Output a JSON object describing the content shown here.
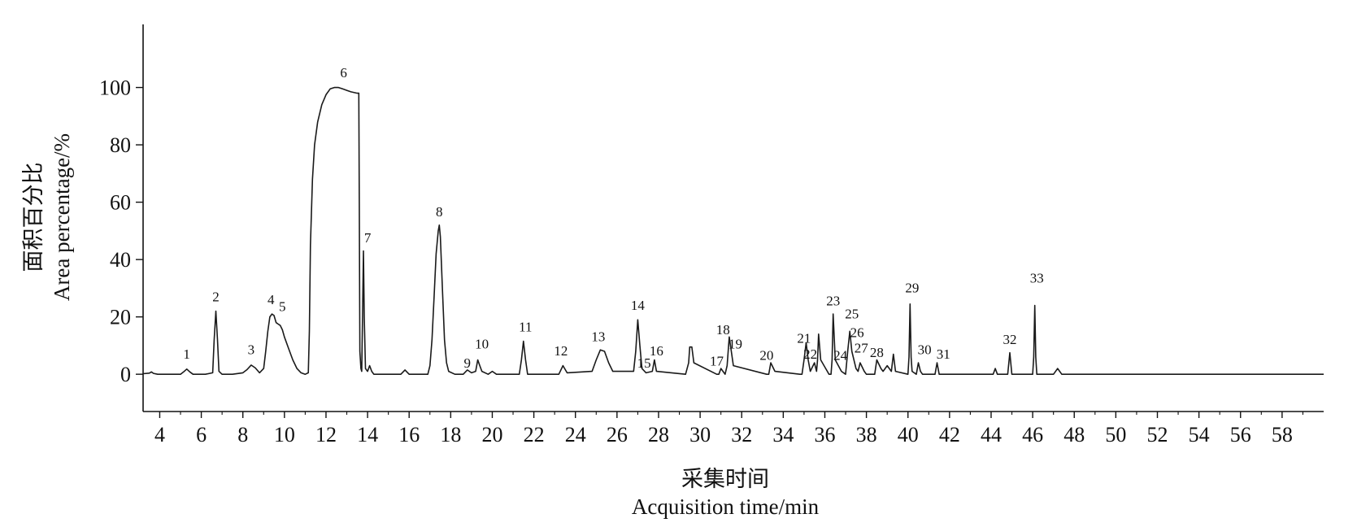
{
  "chart_data": {
    "type": "line",
    "title": "",
    "xlabel_cn": "采集时间",
    "xlabel_en": "Acquisition time/min",
    "ylabel_cn": "面积百分比",
    "ylabel_en": "Area percentage/%",
    "xlim": [
      3.2,
      60.0
    ],
    "ylim": [
      -13,
      122
    ],
    "x_ticks": [
      4,
      6,
      8,
      10,
      12,
      14,
      16,
      18,
      20,
      22,
      24,
      26,
      28,
      30,
      32,
      34,
      36,
      38,
      40,
      42,
      44,
      46,
      48,
      50,
      52,
      54,
      56,
      58
    ],
    "x_tick_labels": [
      "4",
      "6",
      "8",
      "10",
      "12",
      "14",
      "16",
      "18",
      "20",
      "22",
      "24",
      "26",
      "28",
      "30",
      "32",
      "34",
      "36",
      "38",
      "40",
      "42",
      "44",
      "46",
      "48",
      "50",
      "52",
      "54",
      "56",
      "58"
    ],
    "y_ticks": [
      0,
      20,
      40,
      60,
      80,
      100
    ],
    "y_tick_labels": [
      "0",
      "20",
      "40",
      "60",
      "80",
      "100"
    ],
    "series": [
      {
        "x": [
          3.2,
          3.5,
          3.6,
          3.7,
          3.9,
          4.5,
          5.0,
          5.15,
          5.3,
          5.45,
          5.6,
          6.2,
          6.55,
          6.62,
          6.7,
          6.78,
          6.85,
          7.0,
          7.5,
          8.0,
          8.2,
          8.4,
          8.6,
          8.8,
          9.0,
          9.1,
          9.2,
          9.3,
          9.4,
          9.5,
          9.6,
          9.7,
          9.8,
          9.9,
          10.0,
          10.2,
          10.4,
          10.6,
          10.8,
          11.0,
          11.15,
          11.2,
          11.25,
          11.35,
          11.45,
          11.6,
          11.8,
          12.0,
          12.2,
          12.4,
          12.6,
          12.8,
          13.0,
          13.2,
          13.5,
          13.58,
          13.6,
          13.63,
          13.68,
          13.72,
          13.76,
          13.8,
          13.84,
          13.9,
          14.0,
          14.1,
          14.2,
          14.3,
          15.6,
          15.8,
          16.0,
          16.9,
          17.0,
          17.1,
          17.2,
          17.3,
          17.4,
          17.45,
          17.5,
          17.6,
          17.7,
          17.8,
          17.9,
          18.2,
          18.6,
          18.8,
          19.0,
          19.2,
          19.3,
          19.4,
          19.5,
          19.8,
          20.0,
          20.2,
          21.3,
          21.4,
          21.5,
          21.6,
          21.7,
          23.2,
          23.4,
          23.6,
          24.8,
          25.0,
          25.2,
          25.4,
          25.6,
          25.8,
          26.8,
          26.9,
          27.0,
          27.1,
          27.2,
          27.4,
          27.7,
          27.8,
          27.9,
          29.3,
          29.45,
          29.5,
          29.6,
          29.7,
          30.8,
          30.9,
          31.0,
          31.2,
          31.3,
          31.4,
          31.6,
          33.2,
          33.3,
          33.4,
          33.6,
          34.8,
          34.9,
          35.0,
          35.1,
          35.2,
          35.3,
          35.5,
          35.6,
          35.65,
          35.7,
          35.8,
          36.2,
          36.3,
          36.35,
          36.4,
          36.5,
          36.8,
          37.0,
          37.1,
          37.2,
          37.3,
          37.5,
          37.6,
          37.7,
          37.9,
          38.0,
          38.4,
          38.5,
          38.7,
          38.8,
          39.0,
          39.2,
          39.3,
          39.4,
          40.0,
          40.05,
          40.1,
          40.15,
          40.2,
          40.4,
          40.5,
          40.6,
          40.7,
          41.3,
          41.4,
          41.5,
          44.1,
          44.2,
          44.3,
          44.8,
          44.9,
          45.0,
          46.0,
          46.05,
          46.1,
          46.15,
          46.2,
          47.0,
          47.2,
          47.4,
          48.0,
          60.0
        ],
        "y": [
          0.2,
          0.4,
          0.8,
          0.3,
          0,
          0,
          0,
          0.8,
          1.8,
          0.8,
          0,
          0,
          0.5,
          12,
          22,
          12,
          1,
          0,
          0,
          0.5,
          1.6,
          3.2,
          2.2,
          0.5,
          2,
          8,
          15,
          20,
          21,
          20.5,
          18,
          17.5,
          17,
          15.5,
          13,
          9,
          5,
          2,
          0.5,
          0,
          0.5,
          15,
          45,
          68,
          80,
          88,
          94,
          97.5,
          99.5,
          100,
          100,
          99.5,
          99,
          98.5,
          98,
          98,
          60,
          8,
          2,
          1,
          20,
          43,
          20,
          2,
          1,
          3,
          1,
          0,
          0,
          1.5,
          0,
          0,
          3,
          12,
          27,
          42,
          50,
          52,
          48,
          30,
          12,
          4,
          1,
          0,
          0,
          1.5,
          0.5,
          1,
          5,
          3,
          1,
          0,
          1,
          0,
          0,
          5,
          11.5,
          5,
          0,
          0,
          3,
          0.5,
          1,
          5,
          8.5,
          8,
          4,
          1,
          1,
          8,
          19,
          10,
          2,
          0.5,
          1,
          5,
          1,
          0,
          4,
          9.5,
          9.5,
          4,
          0,
          0,
          2,
          0,
          3,
          13,
          3,
          0,
          0,
          4,
          1,
          0,
          0,
          5,
          11,
          5,
          1,
          4,
          1,
          5,
          14,
          5,
          0,
          0,
          5,
          21,
          5,
          1,
          0,
          8,
          15,
          8,
          2,
          1,
          4,
          1,
          0,
          0,
          5,
          2,
          1,
          3,
          1,
          7,
          1,
          0,
          6,
          24.5,
          6,
          1,
          0,
          4,
          1,
          0,
          0,
          4,
          0,
          0,
          2,
          0,
          0,
          7.5,
          0,
          0,
          6,
          24,
          6,
          0,
          0,
          2,
          0,
          0,
          0
        ]
      }
    ],
    "peak_labels": [
      {
        "text": "1",
        "x": 5.3,
        "y": 5.5
      },
      {
        "text": "2",
        "x": 6.7,
        "y": 25.5
      },
      {
        "text": "3",
        "x": 8.4,
        "y": 7
      },
      {
        "text": "4",
        "x": 9.35,
        "y": 24.5
      },
      {
        "text": "5",
        "x": 9.9,
        "y": 22
      },
      {
        "text": "6",
        "x": 12.85,
        "y": 103.5
      },
      {
        "text": "7",
        "x": 14.0,
        "y": 46
      },
      {
        "text": "8",
        "x": 17.45,
        "y": 55
      },
      {
        "text": "9",
        "x": 18.8,
        "y": 2.3
      },
      {
        "text": "10",
        "x": 19.5,
        "y": 9
      },
      {
        "text": "11",
        "x": 21.6,
        "y": 15
      },
      {
        "text": "12",
        "x": 23.3,
        "y": 6.5
      },
      {
        "text": "13",
        "x": 25.1,
        "y": 11.5
      },
      {
        "text": "14",
        "x": 27.0,
        "y": 22.5
      },
      {
        "text": "15",
        "x": 27.3,
        "y": 2.3
      },
      {
        "text": "16",
        "x": 27.9,
        "y": 6.5
      },
      {
        "text": "17",
        "x": 30.8,
        "y": 3
      },
      {
        "text": "18",
        "x": 31.1,
        "y": 14
      },
      {
        "text": "19",
        "x": 31.7,
        "y": 9
      },
      {
        "text": "20",
        "x": 33.2,
        "y": 5
      },
      {
        "text": "21",
        "x": 35.0,
        "y": 11
      },
      {
        "text": "22",
        "x": 35.3,
        "y": 5.5
      },
      {
        "text": "23",
        "x": 36.4,
        "y": 24
      },
      {
        "text": "24",
        "x": 36.75,
        "y": 5
      },
      {
        "text": "25",
        "x": 37.3,
        "y": 19.5
      },
      {
        "text": "26",
        "x": 37.55,
        "y": 13
      },
      {
        "text": "27",
        "x": 37.75,
        "y": 7.5
      },
      {
        "text": "28",
        "x": 38.5,
        "y": 6
      },
      {
        "text": "29",
        "x": 40.2,
        "y": 28.5
      },
      {
        "text": "30",
        "x": 40.8,
        "y": 7
      },
      {
        "text": "31",
        "x": 41.7,
        "y": 5.5
      },
      {
        "text": "32",
        "x": 44.9,
        "y": 10.5
      },
      {
        "text": "33",
        "x": 46.2,
        "y": 32
      }
    ],
    "grid": false,
    "legend": "none",
    "line_color": "#1a1a1a"
  }
}
